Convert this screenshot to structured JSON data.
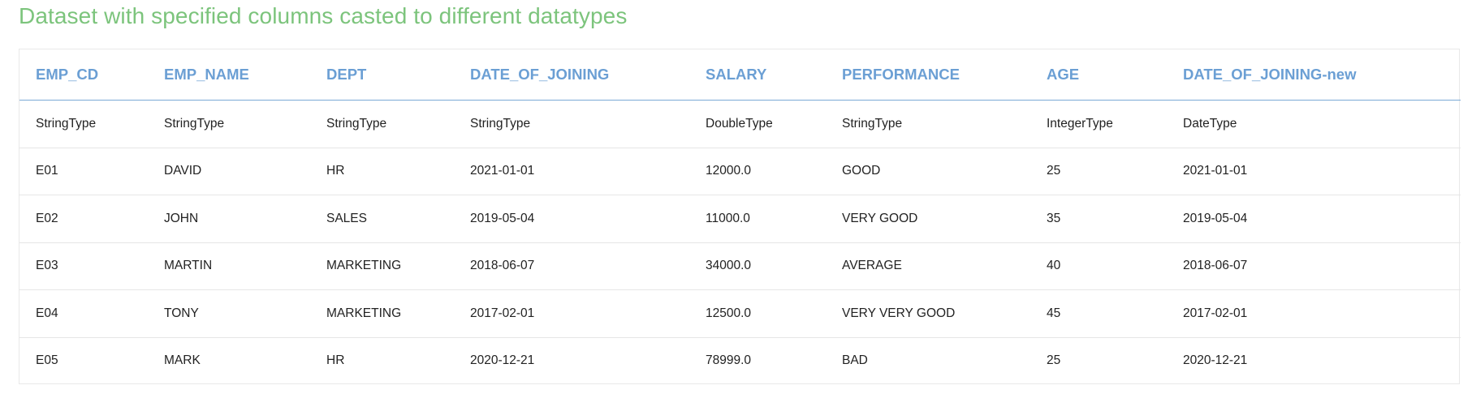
{
  "title": "Dataset with specified columns casted to different datatypes",
  "table": {
    "columns": [
      "EMP_CD",
      "EMP_NAME",
      "DEPT",
      "DATE_OF_JOINING",
      "SALARY",
      "PERFORMANCE",
      "AGE",
      "DATE_OF_JOINING-new"
    ],
    "rows": [
      [
        "StringType",
        "StringType",
        "StringType",
        "StringType",
        "DoubleType",
        "StringType",
        "IntegerType",
        "DateType"
      ],
      [
        "E01",
        "DAVID",
        "HR",
        "2021-01-01",
        "12000.0",
        "GOOD",
        "25",
        "2021-01-01"
      ],
      [
        "E02",
        "JOHN",
        "SALES",
        "2019-05-04",
        "11000.0",
        "VERY GOOD",
        "35",
        "2019-05-04"
      ],
      [
        "E03",
        "MARTIN",
        "MARKETING",
        "2018-06-07",
        "34000.0",
        "AVERAGE",
        "40",
        "2018-06-07"
      ],
      [
        "E04",
        "TONY",
        "MARKETING",
        "2017-02-01",
        "12500.0",
        "VERY VERY GOOD",
        "45",
        "2017-02-01"
      ],
      [
        "E05",
        "MARK",
        "HR",
        "2020-12-21",
        "78999.0",
        "BAD",
        "25",
        "2020-12-21"
      ]
    ]
  },
  "colors": {
    "title": "#7cc47c",
    "header": "#6b9fd4",
    "header_rule": "#7aaad6",
    "row_border": "#e6e6e6"
  }
}
